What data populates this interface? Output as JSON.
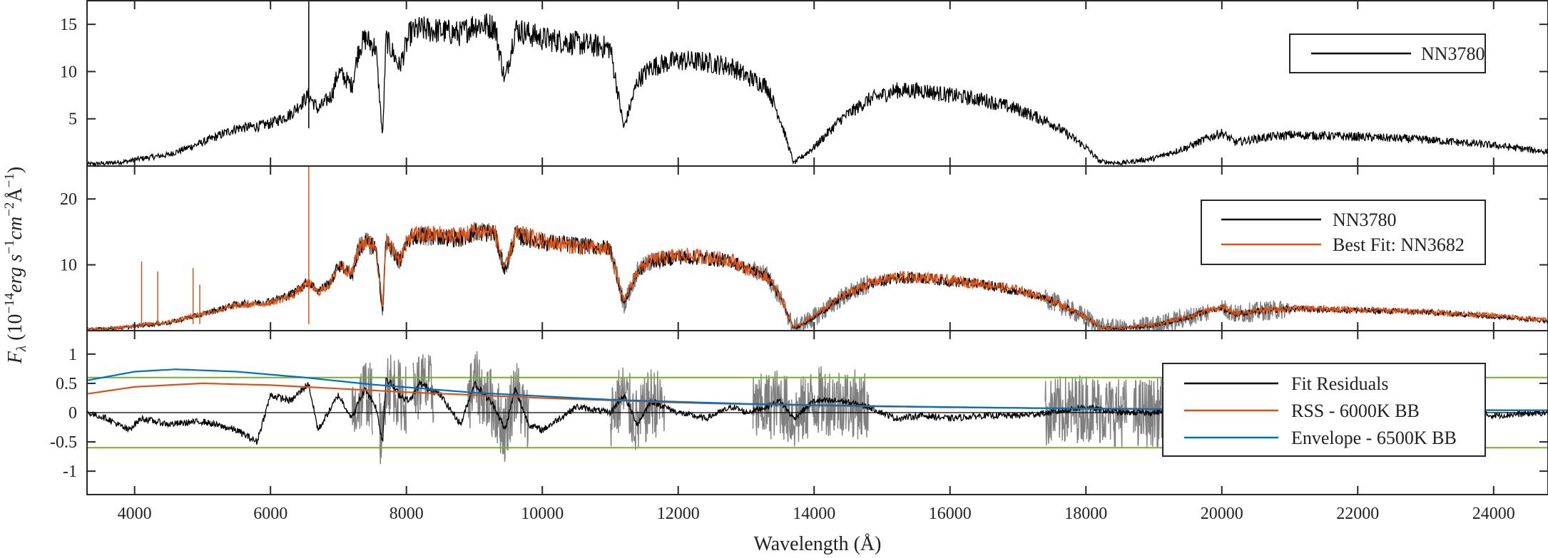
{
  "chart_data": [
    {
      "type": "line",
      "panel": "top",
      "xlim": [
        3300,
        24800
      ],
      "ylim": [
        0,
        17.5
      ],
      "yticks": [
        5,
        10,
        15
      ],
      "legend_position": "top-right",
      "series": [
        {
          "name": "NN3780",
          "color": "#000000",
          "x": [
            3300,
            3600,
            3900,
            4100,
            4500,
            5000,
            5500,
            5800,
            6000,
            6300,
            6560,
            6700,
            6900,
            7000,
            7200,
            7300,
            7400,
            7550,
            7650,
            7700,
            7900,
            8050,
            8200,
            8500,
            8800,
            9000,
            9300,
            9450,
            9600,
            9800,
            10000,
            10500,
            11000,
            11200,
            11400,
            11600,
            12000,
            12400,
            12800,
            13000,
            13300,
            13500,
            13700,
            14000,
            14400,
            14800,
            15200,
            15600,
            16000,
            16500,
            17000,
            17500,
            18000,
            18200,
            18500,
            19000,
            19500,
            19800,
            20000,
            20200,
            20600,
            21000,
            22000,
            23000,
            24000,
            24800
          ],
          "y": [
            0.2,
            0.3,
            0.5,
            0.8,
            1.2,
            2.5,
            4.0,
            4.2,
            4.5,
            5.5,
            7.5,
            6.0,
            7.5,
            10.0,
            8.5,
            12.5,
            13.5,
            12.5,
            3.0,
            13.5,
            10.5,
            14.0,
            14.5,
            14.3,
            14.0,
            15.0,
            14.8,
            9.0,
            14.5,
            14.0,
            13.5,
            13.0,
            12.5,
            4.0,
            9.0,
            10.5,
            11.2,
            11.0,
            10.5,
            9.5,
            8.5,
            5.0,
            0.3,
            2.0,
            5.0,
            7.0,
            8.0,
            8.0,
            7.5,
            7.0,
            6.0,
            4.5,
            2.0,
            0.5,
            0.3,
            0.8,
            2.0,
            3.0,
            3.5,
            2.5,
            3.0,
            3.3,
            3.1,
            2.8,
            2.2,
            1.5
          ]
        }
      ]
    },
    {
      "type": "line",
      "panel": "middle",
      "xlim": [
        3300,
        24800
      ],
      "ylim": [
        0,
        25
      ],
      "yticks": [
        10,
        20
      ],
      "legend_position": "top-right",
      "series": [
        {
          "name": "NN3780",
          "color": "#000000",
          "x": [
            3300,
            3600,
            3900,
            4100,
            4500,
            5000,
            5500,
            5800,
            6000,
            6300,
            6560,
            6700,
            6900,
            7000,
            7200,
            7300,
            7400,
            7550,
            7650,
            7700,
            7900,
            8050,
            8200,
            8500,
            8800,
            9000,
            9300,
            9450,
            9600,
            9800,
            10000,
            10500,
            11000,
            11200,
            11400,
            11600,
            12000,
            12400,
            12800,
            13000,
            13300,
            13500,
            13700,
            14000,
            14400,
            14800,
            15200,
            15600,
            16000,
            16500,
            17000,
            17500,
            18000,
            18200,
            18500,
            19000,
            19500,
            19800,
            20000,
            20200,
            20600,
            21000,
            22000,
            23000,
            24000,
            24800
          ],
          "y": [
            0.2,
            0.3,
            0.5,
            0.8,
            1.2,
            2.5,
            4.0,
            4.2,
            4.5,
            5.5,
            7.5,
            6.0,
            7.5,
            10.0,
            8.5,
            12.5,
            13.5,
            12.5,
            3.0,
            13.5,
            10.5,
            14.0,
            14.5,
            14.3,
            14.0,
            15.0,
            14.8,
            9.0,
            14.5,
            14.0,
            13.5,
            13.0,
            12.5,
            4.0,
            9.0,
            10.5,
            11.2,
            11.0,
            10.5,
            9.5,
            8.5,
            5.0,
            0.3,
            2.0,
            5.0,
            7.0,
            8.0,
            8.0,
            7.5,
            7.0,
            6.0,
            4.5,
            2.0,
            0.5,
            0.3,
            0.8,
            2.0,
            3.0,
            3.5,
            2.5,
            3.0,
            3.3,
            3.1,
            2.8,
            2.2,
            1.5
          ]
        },
        {
          "name": "Best Fit: NN3682",
          "color": "#d95319",
          "x": [
            3300,
            3600,
            3900,
            4100,
            4500,
            5000,
            5500,
            5800,
            6000,
            6300,
            6560,
            6700,
            6900,
            7000,
            7200,
            7300,
            7400,
            7550,
            7650,
            7700,
            7900,
            8050,
            8200,
            8500,
            8800,
            9000,
            9300,
            9450,
            9600,
            9800,
            10000,
            10500,
            11000,
            11200,
            11400,
            11600,
            12000,
            12400,
            12800,
            13000,
            13300,
            13500,
            13700,
            14000,
            14400,
            14800,
            15200,
            15600,
            16000,
            16500,
            17000,
            17500,
            18000,
            18200,
            18500,
            19000,
            19500,
            19800,
            20000,
            20200,
            20600,
            21000,
            22000,
            23000,
            24000,
            24800
          ],
          "y": [
            0.2,
            0.3,
            0.6,
            0.9,
            1.3,
            2.6,
            3.8,
            4.0,
            4.3,
            5.2,
            7.2,
            5.8,
            7.3,
            10.2,
            8.7,
            12.8,
            13.8,
            12.8,
            3.2,
            13.8,
            10.8,
            14.3,
            14.6,
            14.6,
            14.4,
            15.2,
            15.0,
            9.2,
            14.7,
            14.3,
            13.6,
            12.8,
            12.3,
            4.2,
            9.2,
            10.7,
            11.5,
            11.2,
            10.7,
            9.3,
            8.3,
            5.2,
            0.4,
            2.2,
            5.2,
            7.2,
            8.2,
            8.1,
            7.6,
            7.1,
            6.2,
            4.6,
            2.1,
            0.6,
            0.4,
            0.9,
            2.1,
            3.1,
            3.6,
            2.6,
            3.1,
            3.4,
            3.2,
            2.9,
            2.3,
            1.6
          ]
        }
      ]
    },
    {
      "type": "line",
      "panel": "bottom",
      "xlim": [
        3300,
        24800
      ],
      "ylim": [
        -1.4,
        1.4
      ],
      "yticks": [
        -1,
        -0.5,
        0,
        0.5,
        1
      ],
      "xticks": [
        4000,
        6000,
        8000,
        10000,
        12000,
        14000,
        16000,
        18000,
        20000,
        22000,
        24000
      ],
      "xlabel": "Wavelength (Å)",
      "legend_position": "center-right",
      "threshold_lines": {
        "values": [
          0.6,
          -0.6
        ],
        "color": "#77ac30"
      },
      "zero_line": 0,
      "series": [
        {
          "name": "Fit Residuals",
          "color": "#000000",
          "x": [
            3300,
            3600,
            3900,
            4100,
            4500,
            5000,
            5500,
            5800,
            6000,
            6300,
            6560,
            6700,
            6900,
            7000,
            7200,
            7300,
            7400,
            7550,
            7650,
            7700,
            7900,
            8050,
            8200,
            8500,
            8800,
            9000,
            9300,
            9450,
            9600,
            9800,
            10000,
            10500,
            11000,
            11200,
            11400,
            11600,
            12000,
            12400,
            12800,
            13000,
            13300,
            13500,
            13700,
            14000,
            14400,
            14800,
            15200,
            15600,
            16000,
            16500,
            17000,
            17500,
            18000,
            18200,
            18500,
            19000,
            19500,
            19800,
            20000,
            20200,
            20600,
            21000,
            22000,
            23000,
            24000,
            24800
          ],
          "y": [
            0.0,
            -0.1,
            -0.3,
            -0.1,
            -0.2,
            -0.15,
            -0.3,
            -0.5,
            0.3,
            0.2,
            0.5,
            -0.3,
            0.1,
            0.3,
            -0.1,
            0.2,
            0.4,
            0.1,
            -0.5,
            0.6,
            0.3,
            0.2,
            0.5,
            0.3,
            -0.2,
            0.5,
            0.1,
            -0.3,
            0.4,
            -0.2,
            -0.3,
            0.1,
            0.0,
            0.3,
            -0.2,
            0.2,
            0.0,
            -0.1,
            0.1,
            0.0,
            0.1,
            0.2,
            -0.1,
            0.2,
            0.2,
            0.1,
            -0.1,
            -0.05,
            -0.1,
            -0.05,
            -0.05,
            0.0,
            0.1,
            0.05,
            0.0,
            0.0,
            0.1,
            0.05,
            0.05,
            0.0,
            0.05,
            0.0,
            -0.05,
            0.05,
            -0.05,
            0.0
          ]
        },
        {
          "name": "RSS - 6000K BB",
          "color": "#d95319",
          "x": [
            3300,
            4000,
            5000,
            6000,
            7000,
            8000,
            10000,
            12000,
            14000,
            16000,
            18000,
            20000,
            22000,
            24000,
            24800
          ],
          "y": [
            0.32,
            0.44,
            0.5,
            0.47,
            0.41,
            0.35,
            0.25,
            0.17,
            0.12,
            0.09,
            0.07,
            0.06,
            0.05,
            0.04,
            0.04
          ]
        },
        {
          "name": "Envelope - 6500K BB",
          "color": "#0072bd",
          "x": [
            3300,
            4000,
            4600,
            5500,
            6500,
            7500,
            9000,
            11000,
            13000,
            15000,
            17000,
            19000,
            21000,
            23000,
            24800
          ],
          "y": [
            0.55,
            0.7,
            0.74,
            0.7,
            0.6,
            0.48,
            0.34,
            0.22,
            0.15,
            0.11,
            0.08,
            0.06,
            0.05,
            0.045,
            0.04
          ]
        }
      ]
    }
  ],
  "labels": {
    "ylabel": "F_λ (10^{-14} erg s^{-1} cm^{-2} Å^{-1})",
    "xlabel": "Wavelength (Å)"
  },
  "gray_color": "#808080"
}
